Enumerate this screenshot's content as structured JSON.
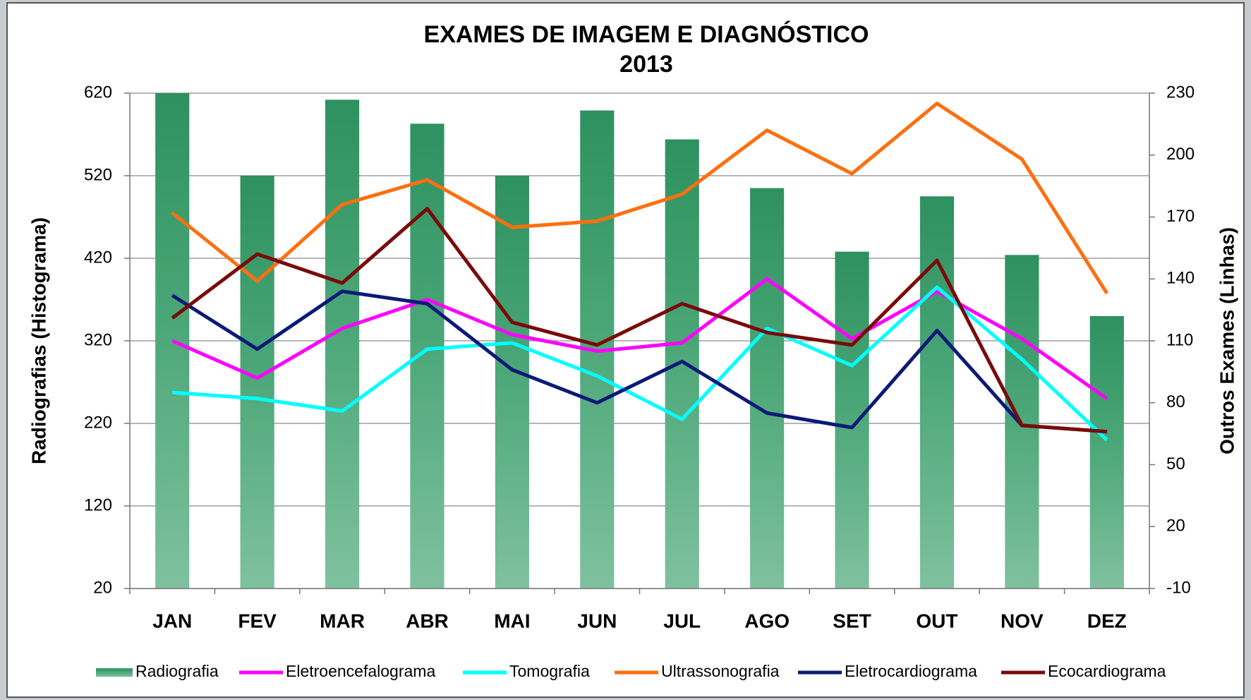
{
  "chart_data": {
    "type": "bar-line",
    "title": "EXAMES DE IMAGEM E DIAGNÓSTICO",
    "subtitle": "2013",
    "y_label": "Radiografias (Histograma)",
    "y2_label": "Outros Exames (Linhas)",
    "categories": [
      "JAN",
      "FEV",
      "MAR",
      "ABR",
      "MAI",
      "JUN",
      "JUL",
      "AGO",
      "SET",
      "OUT",
      "NOV",
      "DEZ"
    ],
    "ylim": [
      20,
      620
    ],
    "yticks": [
      20,
      120,
      220,
      320,
      420,
      520,
      620
    ],
    "y2lim": [
      -10,
      230
    ],
    "y2ticks": [
      -10,
      20,
      50,
      80,
      110,
      140,
      170,
      200,
      230
    ],
    "grid": true,
    "series": [
      {
        "name": "Radiografia",
        "kind": "bar",
        "color": "#349a66",
        "values": [
          620,
          520,
          612,
          583,
          520,
          599,
          564,
          505,
          428,
          495,
          424,
          350
        ]
      },
      {
        "name": "Eletroencefalograma",
        "kind": "line",
        "axis": "y2",
        "color": "#ff00ff",
        "values": [
          110,
          92,
          116,
          130,
          113,
          105,
          109,
          140,
          111,
          134,
          111,
          82
        ]
      },
      {
        "name": "Tomografia",
        "kind": "line",
        "axis": "y2",
        "color": "#00ffff",
        "values": [
          85,
          82,
          76,
          106,
          109,
          93,
          72,
          116,
          98,
          136,
          101,
          62
        ]
      },
      {
        "name": "Ultrassonografia",
        "kind": "line",
        "axis": "y2",
        "color": "#ff6f0f",
        "values": [
          172,
          139,
          176,
          188,
          165,
          168,
          181,
          212,
          191,
          225,
          198,
          133
        ]
      },
      {
        "name": "Eletrocardiograma",
        "kind": "line",
        "axis": "y2",
        "color": "#0a1a78",
        "values": [
          132,
          106,
          134,
          128,
          96,
          80,
          100,
          75,
          68,
          115,
          69,
          66
        ]
      },
      {
        "name": "Ecocardiograma",
        "kind": "line",
        "axis": "y2",
        "color": "#7a0a0a",
        "values": [
          121,
          152,
          138,
          174,
          119,
          108,
          128,
          114,
          108,
          149,
          69,
          66
        ]
      }
    ]
  }
}
